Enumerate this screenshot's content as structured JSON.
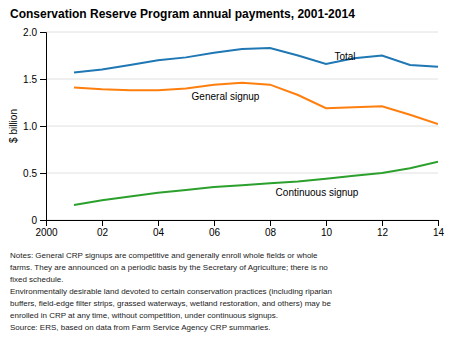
{
  "chart_data": {
    "type": "line",
    "title": "Conservation Reserve Program annual payments, 2001-2014",
    "y_label": "$ billion",
    "x": [
      2001,
      2002,
      2003,
      2004,
      2005,
      2006,
      2007,
      2008,
      2009,
      2010,
      2011,
      2012,
      2013,
      2014
    ],
    "series": [
      {
        "values": [
          1.57,
          1.6,
          1.65,
          1.7,
          1.73,
          1.78,
          1.82,
          1.83,
          1.75,
          1.66,
          1.72,
          1.75,
          1.65,
          1.63
        ]
      },
      {
        "values": [
          1.41,
          1.39,
          1.38,
          1.38,
          1.4,
          1.44,
          1.46,
          1.44,
          1.33,
          1.19,
          1.2,
          1.21,
          1.12,
          1.02
        ]
      },
      {
        "values": [
          0.16,
          0.21,
          0.25,
          0.29,
          0.32,
          0.35,
          0.37,
          0.39,
          0.41,
          0.44,
          0.47,
          0.5,
          0.55,
          0.62
        ]
      }
    ],
    "annotations": [
      {
        "text": "Total",
        "x": 2010.3,
        "y": 1.7
      },
      {
        "text": "General signup",
        "x": 2005.2,
        "y": 1.28
      },
      {
        "text": "Continuous signup",
        "x": 2008.2,
        "y": 0.26
      }
    ],
    "xlim": [
      2000,
      2014
    ],
    "xticks": [
      2000,
      {
        "value": 2002,
        "label": "02"
      },
      {
        "value": 2004,
        "label": "04"
      },
      {
        "value": 2006,
        "label": "06"
      },
      {
        "value": 2008,
        "label": "08"
      },
      {
        "value": 2010,
        "label": "10"
      },
      {
        "value": 2012,
        "label": "12"
      },
      {
        "value": 2014,
        "label": "14"
      }
    ],
    "ylim": [
      0,
      2.0
    ],
    "yticks": [
      0,
      0.5,
      {
        "value": 1.0,
        "label": "1.0"
      },
      1.5,
      {
        "value": 2.0,
        "label": "2.0"
      }
    ],
    "grid": true,
    "notes": [
      "Notes: General CRP signups are competitive and generally enroll whole fields or whole",
      "farms. They are announced on a periodic basis by the Secretary of Agriculture; there is no",
      "fixed schedule.",
      "Environmentally desirable land devoted to certain conservation practices (including riparian",
      "buffers, field-edge filter strips, grassed waterways, wetland restoration, and others) may be",
      "enrolled in CRP at any time, without competition, under continuous signups.",
      "Source: ERS, based on data from Farm Service Agency CRP summaries."
    ]
  }
}
